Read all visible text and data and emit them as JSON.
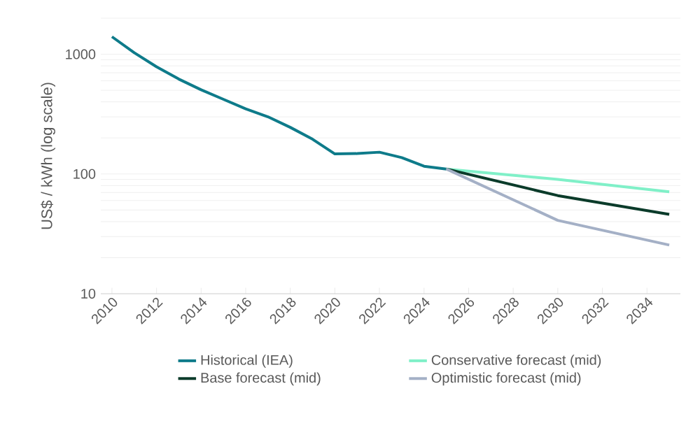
{
  "chart_data": {
    "type": "line",
    "ylabel": "US$ / kWh (log scale)",
    "log": "y",
    "grid": "y",
    "legend": "bottom",
    "line_style": "solid",
    "xlim": [
      2009.5,
      2035.5
    ],
    "xticks": [
      2010,
      2012,
      2014,
      2016,
      2018,
      2020,
      2022,
      2024,
      2026,
      2028,
      2030,
      2032,
      2034
    ],
    "ylim": [
      10,
      2000
    ],
    "yticks": [
      10,
      100,
      1000
    ],
    "series": [
      {
        "name": "Historical (IEA)",
        "color": "#0e7b8a",
        "x": [
          2010,
          2011,
          2012,
          2013,
          2014,
          2015,
          2016,
          2017,
          2018,
          2019,
          2020,
          2021,
          2022,
          2023,
          2024,
          2025
        ],
        "values": [
          1400,
          1030,
          785,
          620,
          505,
          420,
          350,
          300,
          245,
          195,
          147,
          148,
          152,
          137,
          116,
          110
        ]
      },
      {
        "name": "Conservative forecast (mid)",
        "color": "#80f0c8",
        "x": [
          2025,
          2030,
          2035
        ],
        "values": [
          110,
          90,
          71
        ]
      },
      {
        "name": "Base forecast (mid)",
        "color": "#0b3b2a",
        "x": [
          2025,
          2030,
          2035
        ],
        "values": [
          110,
          66,
          46
        ]
      },
      {
        "name": "Optimistic forecast (mid)",
        "color": "#a4b0c6",
        "x": [
          2025,
          2030,
          2035
        ],
        "values": [
          110,
          41,
          25.5
        ]
      }
    ]
  }
}
